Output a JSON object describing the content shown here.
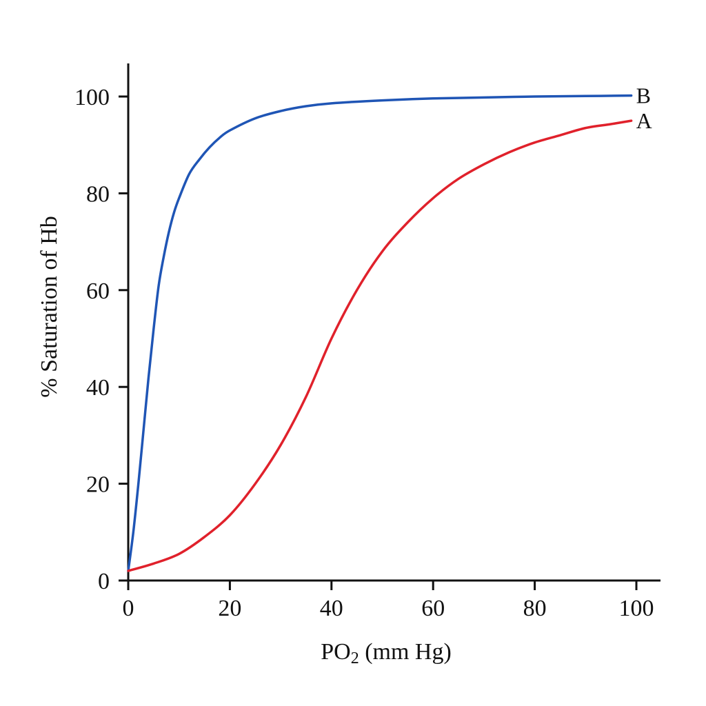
{
  "chart_data": {
    "type": "line",
    "title": "",
    "xlabel": {
      "main": "PO",
      "sub": "2",
      "rest": " (mm Hg)"
    },
    "ylabel": "% Saturation of Hb",
    "xlim": [
      0,
      100
    ],
    "ylim": [
      0,
      100
    ],
    "xticks": [
      0,
      20,
      40,
      60,
      80,
      100
    ],
    "yticks": [
      0,
      20,
      40,
      60,
      80,
      100
    ],
    "grid": false,
    "legend": "none",
    "series": [
      {
        "name": "B",
        "color": "#1f55b5",
        "x": [
          0,
          1,
          2,
          3,
          4,
          5,
          6,
          7,
          8,
          9,
          10,
          12,
          14,
          16,
          18,
          20,
          25,
          30,
          35,
          40,
          50,
          60,
          70,
          80,
          90,
          99
        ],
        "y": [
          2,
          10,
          20,
          31,
          42,
          52,
          61,
          67,
          72,
          76,
          79,
          84,
          87,
          89.5,
          91.5,
          93,
          95.5,
          97,
          98,
          98.6,
          99.2,
          99.6,
          99.8,
          100,
          100.1,
          100.2
        ]
      },
      {
        "name": "A",
        "color": "#e0212b",
        "x": [
          0,
          5,
          10,
          15,
          20,
          25,
          30,
          35,
          40,
          45,
          50,
          55,
          60,
          65,
          70,
          75,
          80,
          85,
          90,
          95,
          99
        ],
        "y": [
          2,
          3.5,
          5.5,
          9,
          13.5,
          20,
          28,
          38,
          50,
          60,
          68,
          74,
          79,
          83,
          86,
          88.5,
          90.5,
          92,
          93.5,
          94.3,
          95
        ]
      }
    ]
  }
}
